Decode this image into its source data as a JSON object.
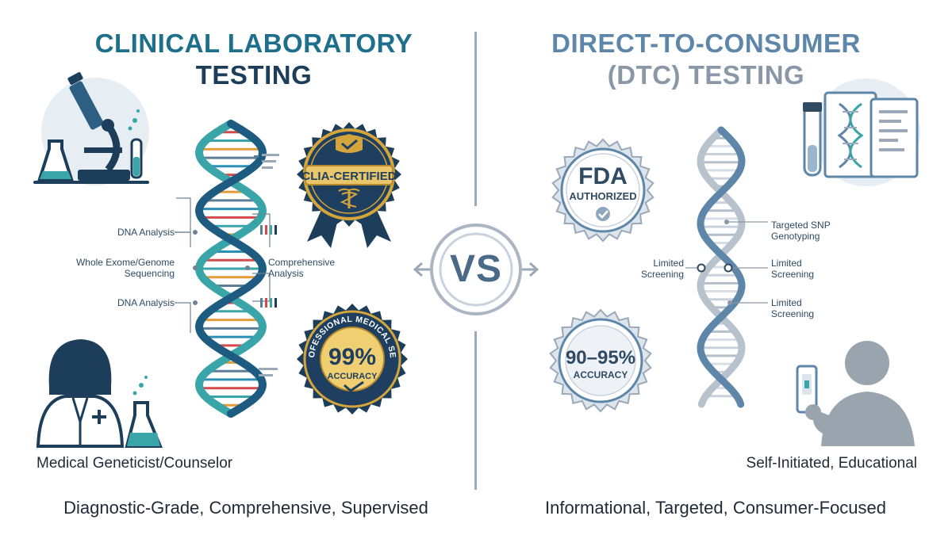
{
  "left": {
    "title_line1": "CLINICAL LABORATORY",
    "title_line2": "TESTING",
    "labels": {
      "dna_analysis_1": "DNA Analysis",
      "wes_line1": "Whole Exome/Genome",
      "wes_line2": "Sequencing",
      "dna_analysis_2": "DNA Analysis",
      "comprehensive_line1": "Comprehensive",
      "comprehensive_line2": "Analysis"
    },
    "badge_clia": "CLIA-CERTIFIED",
    "badge_accuracy": {
      "ring_text": "PROFESSIONAL MEDICAL SEAL",
      "percent": "99%",
      "label": "ACCURACY",
      "fraction": 0.99
    },
    "caption": "Medical Geneticist/Counselor",
    "tagline": "Diagnostic-Grade, Comprehensive, Supervised"
  },
  "vs": "VS",
  "right": {
    "title_line1": "DIRECT-TO-CONSUMER",
    "title_line2": "(DTC) TESTING",
    "badge_fda": {
      "line1": "FDA",
      "line2": "AUTHORIZED"
    },
    "badge_accuracy": {
      "percent": "90–95%",
      "label": "ACCURACY"
    },
    "labels": {
      "snp_line1": "Targeted SNP",
      "snp_line2": "Genotyping",
      "limited_left_line1": "Limited",
      "limited_left_line2": "Screening",
      "limited_right_line1": "Limited",
      "limited_right_line2": "Screening",
      "limited_bottom_line1": "Limited",
      "limited_bottom_line2": "Screening"
    },
    "caption": "Self-Initiated, Educational",
    "tagline": "Informational, Targeted, Consumer-Focused"
  },
  "colors": {
    "left_primary": "#1e6f8c",
    "left_dark": "#1d3e5a",
    "gold": "#d4a53a",
    "right_primary": "#5d86a8",
    "right_gray": "#8a97a6"
  }
}
